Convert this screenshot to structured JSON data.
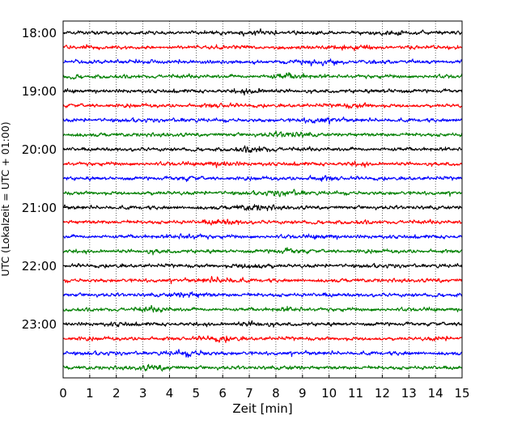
{
  "chart_data": {
    "type": "line",
    "title": "",
    "xlabel": "Zeit  [min]",
    "ylabel": "UTC (Lokalzeit = UTC + 01:00)",
    "xlim": [
      0,
      15
    ],
    "x_ticks": [
      0,
      1,
      2,
      3,
      4,
      5,
      6,
      7,
      8,
      9,
      10,
      11,
      12,
      13,
      14,
      15
    ],
    "x_tick_labels": [
      "0",
      "1",
      "2",
      "3",
      "4",
      "5",
      "6",
      "7",
      "8",
      "9",
      "10",
      "11",
      "12",
      "13",
      "14",
      "15"
    ],
    "y_tick_labels": [
      "18:00",
      "19:00",
      "20:00",
      "21:00",
      "22:00",
      "23:00"
    ],
    "vertical_grid": true,
    "grid_style": "dotted",
    "trace_interval_minutes": 15,
    "start_time": "18:00",
    "trace_count": 24,
    "trace_colors": [
      "#000000",
      "#ff0000",
      "#0000ff",
      "#008000"
    ],
    "series_note_values": "continuous seismograph traces, one per 15-minute interval; waveform amplitudes are noise-like and not individually readable"
  }
}
